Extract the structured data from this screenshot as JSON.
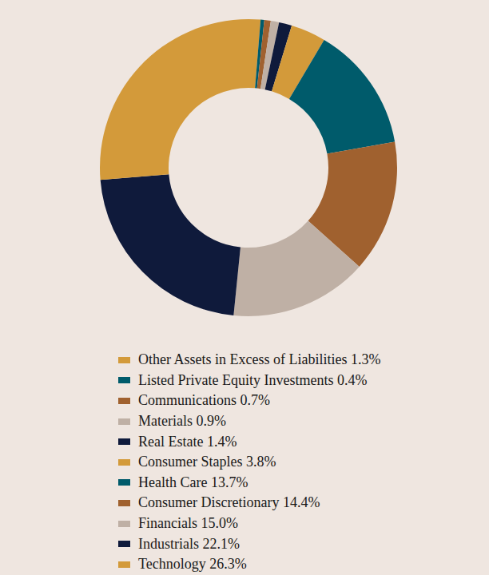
{
  "chart_data": {
    "type": "pie",
    "donut": true,
    "categories": [
      "Other Assets in Excess of Liabilities",
      "Listed Private Equity Investments",
      "Communications",
      "Materials",
      "Real Estate",
      "Consumer Staples",
      "Health Care",
      "Consumer Discretionary",
      "Financials",
      "Industrials",
      "Technology"
    ],
    "values": [
      1.3,
      0.4,
      0.7,
      0.9,
      1.4,
      3.8,
      13.7,
      14.4,
      15.0,
      22.1,
      26.3
    ],
    "value_labels": [
      "1.3%",
      "0.4%",
      "0.7%",
      "0.9%",
      "1.4%",
      "3.8%",
      "13.7%",
      "14.4%",
      "15.0%",
      "22.1%",
      "26.3%"
    ],
    "colors": [
      "#d39a3a",
      "#005b6b",
      "#a0612f",
      "#bfb0a5",
      "#0f1a3b",
      "#d39a3a",
      "#005b6b",
      "#a0612f",
      "#bfb0a5",
      "#0f1a3b",
      "#d39a3a"
    ],
    "legend": "bottom",
    "data_labels": false
  }
}
